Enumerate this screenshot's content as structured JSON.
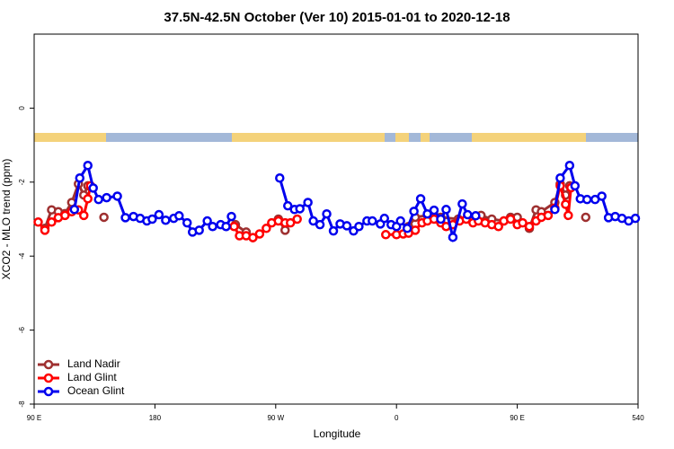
{
  "chart_data": {
    "type": "line",
    "title": "37.5N-42.5N October (Ver 10)   2015-01-01 to 2020-12-18",
    "xlabel": "Longitude",
    "ylabel": "XCO2 - MLO trend (ppm)",
    "xlim": [
      90,
      540
    ],
    "ylim": [
      -8,
      2
    ],
    "xticks": [
      {
        "value": 90,
        "label": "90 E"
      },
      180,
      {
        "value": 270,
        "label": "90 W"
      },
      {
        "value": 360,
        "label": "0"
      },
      {
        "value": 450,
        "label": "90 E"
      },
      540
    ],
    "yticks": [
      -8,
      -6,
      -4,
      -2,
      0
    ],
    "legend": "bottom-left",
    "series": [
      {
        "name": "Land Nadir",
        "color": "#9e3030",
        "x": [
          98,
          103,
          108,
          113,
          118,
          123,
          127,
          130,
          null,
          142,
          null,
          240,
          248,
          253,
          null,
          272,
          277,
          null,
          369,
          374,
          383,
          393,
          406,
          423,
          431,
          440,
          445,
          450,
          459,
          464,
          468,
          478,
          482,
          486,
          489,
          null,
          501
        ],
        "values": [
          -3.25,
          -2.75,
          -2.8,
          -2.85,
          -2.55,
          -2.05,
          -2.35,
          -2.1,
          null,
          -2.95,
          null,
          -3.15,
          -3.35,
          -3.5,
          null,
          -3.0,
          -3.3,
          null,
          -3.2,
          -2.95,
          -2.9,
          -2.95,
          -3.0,
          -2.9,
          -3.0,
          -3.05,
          -2.95,
          -2.95,
          -3.25,
          -2.75,
          -2.8,
          -2.55,
          -2.05,
          -2.35,
          -2.1,
          null,
          -2.95
        ]
      },
      {
        "name": "Land Glint",
        "color": "#ff0000",
        "x": [
          93,
          98,
          103,
          108,
          113,
          118,
          123,
          127,
          130,
          132,
          null,
          239,
          243,
          248,
          253,
          258,
          263,
          267,
          272,
          277,
          281,
          286,
          null,
          352,
          360,
          365,
          369,
          374,
          379,
          383,
          388,
          393,
          397,
          402,
          407,
          412,
          417,
          421,
          426,
          431,
          436,
          440,
          445,
          450,
          454,
          459,
          464,
          468,
          473,
          478,
          482,
          486,
          488,
          490
        ],
        "values": [
          -3.08,
          -3.3,
          -3.08,
          -2.96,
          -2.9,
          -2.8,
          -2.75,
          -2.9,
          -2.45,
          -2.1,
          null,
          -3.2,
          -3.45,
          -3.45,
          -3.5,
          -3.4,
          -3.25,
          -3.1,
          -3.05,
          -3.1,
          -3.1,
          -3.0,
          null,
          -3.42,
          -3.42,
          -3.4,
          -3.38,
          -3.3,
          -3.1,
          -3.05,
          -3.0,
          -3.1,
          -3.2,
          -3.15,
          -3.05,
          -3.0,
          -3.1,
          -3.05,
          -3.1,
          -3.15,
          -3.2,
          -3.05,
          -3.0,
          -3.15,
          -3.1,
          -3.2,
          -3.05,
          -2.95,
          -2.9,
          -2.7,
          -2.1,
          -2.6,
          -2.9,
          -2.15
        ]
      },
      {
        "name": "Ocean Glint",
        "color": "#0000ee",
        "x": [
          120,
          124,
          130,
          134,
          138,
          144,
          152,
          158,
          164,
          169,
          174,
          178,
          183,
          188,
          194,
          198,
          204,
          208,
          213,
          219,
          223,
          229,
          233,
          237,
          null,
          273,
          279,
          284,
          288,
          294,
          298,
          303,
          308,
          313,
          318,
          323,
          328,
          332,
          338,
          342,
          348,
          351,
          356,
          360,
          363,
          368,
          373,
          378,
          383,
          388,
          393,
          397,
          402,
          409,
          413,
          419,
          null,
          478,
          482,
          489,
          493,
          497,
          502,
          508,
          513,
          518,
          523,
          528,
          533,
          538
        ],
        "values": [
          -2.74,
          -1.89,
          -1.55,
          -2.16,
          -2.47,
          -2.42,
          -2.38,
          -2.96,
          -2.93,
          -2.98,
          -3.05,
          -3.0,
          -2.88,
          -3.03,
          -2.98,
          -2.91,
          -3.1,
          -3.35,
          -3.3,
          -3.05,
          -3.2,
          -3.15,
          -3.2,
          -2.93,
          null,
          -1.89,
          -2.64,
          -2.74,
          -2.72,
          -2.55,
          -3.05,
          -3.15,
          -2.86,
          -3.32,
          -3.13,
          -3.18,
          -3.32,
          -3.2,
          -3.05,
          -3.05,
          -3.13,
          -2.98,
          -3.15,
          -3.2,
          -3.05,
          -3.25,
          -2.79,
          -2.45,
          -2.86,
          -2.76,
          -3.0,
          -2.74,
          -3.49,
          -2.59,
          -2.88,
          -2.91,
          null,
          -2.74,
          -1.89,
          -1.55,
          -2.1,
          -2.45,
          -2.47,
          -2.47,
          -2.38,
          -2.96,
          -2.93,
          -2.98,
          -3.05,
          -2.98
        ]
      }
    ]
  }
}
